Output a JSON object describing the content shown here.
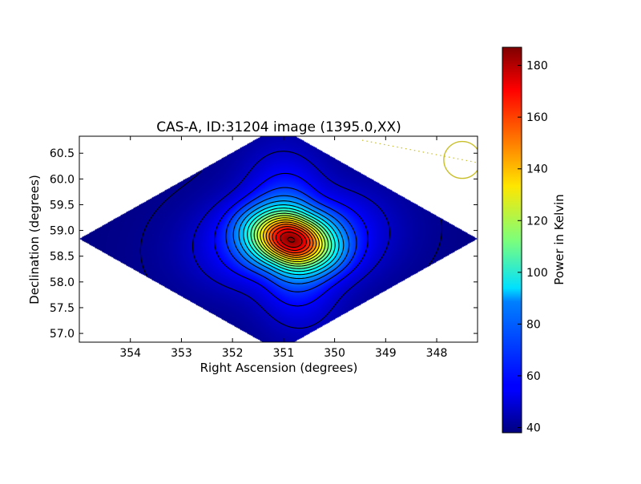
{
  "chart_data": {
    "type": "heatmap",
    "title": "CAS-A, ID:31204 image (1395.0,XX)",
    "xlabel": "Right Ascension (degrees)",
    "ylabel": "Declination (degrees)",
    "x_axis": {
      "range": [
        355.0,
        347.2
      ],
      "inverted": true,
      "ticks": [
        354,
        353,
        352,
        351,
        350,
        349,
        348
      ],
      "tick_labels": [
        "354",
        "353",
        "352",
        "351",
        "350",
        "349",
        "348"
      ]
    },
    "y_axis": {
      "range": [
        56.83,
        60.83
      ],
      "ticks": [
        57.0,
        57.5,
        58.0,
        58.5,
        59.0,
        59.5,
        60.0,
        60.5
      ],
      "tick_labels": [
        "57.0",
        "57.5",
        "58.0",
        "58.5",
        "59.0",
        "59.5",
        "60.0",
        "60.5"
      ]
    },
    "colorbar": {
      "label": "Power in Kelvin",
      "range": [
        38,
        187
      ],
      "ticks": [
        40,
        60,
        80,
        100,
        120,
        140,
        160,
        180
      ],
      "tick_labels": [
        "40",
        "60",
        "80",
        "100",
        "120",
        "140",
        "160",
        "180"
      ],
      "colormap": "jet"
    },
    "source": {
      "ra": 350.85,
      "dec": 58.82,
      "peak_kelvin": 187,
      "background_kelvin": 38
    },
    "contour_levels": [
      40.5,
      48,
      56,
      64,
      72,
      80,
      88,
      96,
      104,
      112,
      120,
      128,
      136,
      144,
      152,
      160,
      168,
      176,
      184
    ],
    "beam_marker": {
      "ra": 347.5,
      "dec": 60.37,
      "color": "#c8bf2a"
    },
    "grid": false
  }
}
